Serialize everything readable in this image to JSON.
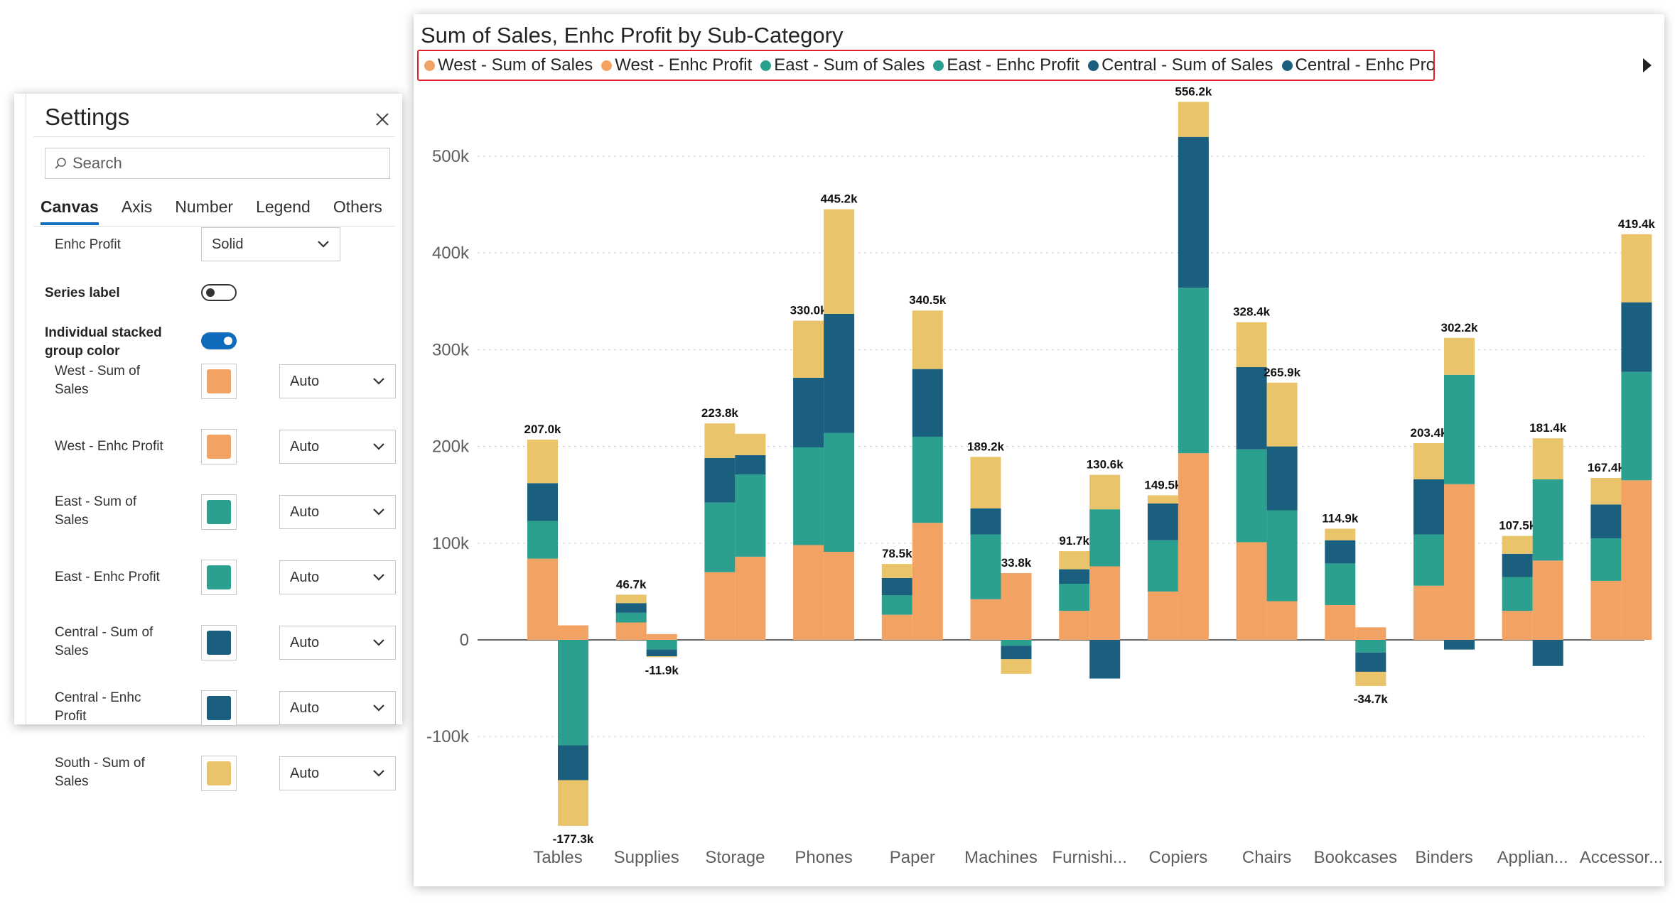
{
  "colors": {
    "west": "#F2A263",
    "east": "#2BA08F",
    "central": "#1A5F7E",
    "south": "#E9C46A",
    "toggle_on": "#0F6CBD"
  },
  "settings": {
    "title": "Settings",
    "search_placeholder": "Search",
    "tabs": [
      "Canvas",
      "Axis",
      "Number",
      "Legend",
      "Others"
    ],
    "enhc_profit_label": "Enhc Profit",
    "enhc_profit_value": "Solid",
    "series_label_label": "Series label",
    "series_label_on": false,
    "individual_color_label_1": "Individual stacked",
    "individual_color_label_2": "group color",
    "individual_color_on": true,
    "series": [
      {
        "label_1": "West - Sum of",
        "label_2": "Sales",
        "color": "#F2A263",
        "mode": "Auto"
      },
      {
        "label_1": "West - Enhc Profit",
        "label_2": "",
        "color": "#F2A263",
        "mode": "Auto"
      },
      {
        "label_1": "East - Sum of",
        "label_2": "Sales",
        "color": "#2BA08F",
        "mode": "Auto"
      },
      {
        "label_1": "East - Enhc Profit",
        "label_2": "",
        "color": "#2BA08F",
        "mode": "Auto"
      },
      {
        "label_1": "Central - Sum of",
        "label_2": "Sales",
        "color": "#1A5F7E",
        "mode": "Auto"
      },
      {
        "label_1": "Central - Enhc",
        "label_2": "Profit",
        "color": "#1A5F7E",
        "mode": "Auto"
      },
      {
        "label_1": "South - Sum of",
        "label_2": "Sales",
        "color": "#E9C46A",
        "mode": "Auto"
      }
    ]
  },
  "chart_data": {
    "type": "bar",
    "title": "Sum of Sales, Enhc Profit by Sub-Category",
    "legend": [
      {
        "name": "West - Sum of Sales",
        "color": "#F2A263"
      },
      {
        "name": "West - Enhc Profit",
        "color": "#F2A263"
      },
      {
        "name": "East - Sum of Sales",
        "color": "#2BA08F"
      },
      {
        "name": "East - Enhc Profit",
        "color": "#2BA08F"
      },
      {
        "name": "Central - Sum of Sales",
        "color": "#1A5F7E"
      },
      {
        "name": "Central - Enhc Profit",
        "color": "#1A5F7E"
      }
    ],
    "legend_position": "top-left",
    "ylim": [
      -150000,
      600000
    ],
    "yticks": [
      -100000,
      0,
      100000,
      200000,
      300000,
      400000,
      500000
    ],
    "ytick_labels": [
      "-100k",
      "0",
      "100k",
      "200k",
      "300k",
      "400k",
      "500k"
    ],
    "grid": true,
    "stack_order": [
      "West",
      "East",
      "Central",
      "South"
    ],
    "categories": [
      "Tables",
      "Supplies",
      "Storage",
      "Phones",
      "Paper",
      "Machines",
      "Furnishi...",
      "Copiers",
      "Chairs",
      "Bookcases",
      "Binders",
      "Applian...",
      "Accessor..."
    ],
    "sales": [
      {
        "West": 84000,
        "East": 39000,
        "Central": 39000,
        "South": 45000,
        "total_label": "207.0k"
      },
      {
        "West": 18000,
        "East": 10000,
        "Central": 10000,
        "South": 8700,
        "total_label": "46.7k"
      },
      {
        "West": 70000,
        "East": 72000,
        "Central": 46000,
        "South": 35800,
        "total_label": "223.8k"
      },
      {
        "West": 98000,
        "East": 101000,
        "Central": 72000,
        "South": 59000,
        "total_label": "330.0k"
      },
      {
        "West": 26000,
        "East": 20000,
        "Central": 18000,
        "South": 14500,
        "total_label": "78.5k"
      },
      {
        "West": 42000,
        "East": 67000,
        "Central": 27000,
        "South": 53200,
        "total_label": "189.2k"
      },
      {
        "West": 30000,
        "East": 28000,
        "Central": 15000,
        "South": 18700,
        "total_label": "91.7k"
      },
      {
        "West": 50000,
        "East": 53000,
        "Central": 38000,
        "South": 8500,
        "total_label": "149.5k"
      },
      {
        "West": 101000,
        "East": 96000,
        "Central": 85000,
        "South": 46400,
        "total_label": "328.4k"
      },
      {
        "West": 36000,
        "East": 43000,
        "Central": 24000,
        "South": 11900,
        "total_label": "114.9k"
      },
      {
        "West": 56000,
        "East": 53000,
        "Central": 57000,
        "South": 37400,
        "total_label": "203.4k"
      },
      {
        "West": 30000,
        "East": 35000,
        "Central": 24000,
        "South": 18500,
        "total_label": "107.5k"
      },
      {
        "West": 61000,
        "East": 44000,
        "Central": 35000,
        "South": 27400,
        "total_label": "167.4k"
      }
    ],
    "profit": [
      {
        "West": 15000,
        "East": -109000,
        "Central": -36000,
        "South": -47300,
        "total_label": "-177.3k"
      },
      {
        "West": 6000,
        "East": -10000,
        "Central": -7000,
        "South": -900,
        "total_label": "-11.9k"
      },
      {
        "West": 86000,
        "East": 85000,
        "Central": 20000,
        "South": 22000,
        "total_label": ""
      },
      {
        "West": 91000,
        "East": 123000,
        "Central": 123000,
        "South": 108200,
        "total_label": "445.2k"
      },
      {
        "West": 121000,
        "East": 89000,
        "Central": 70000,
        "South": 60500,
        "total_label": "340.5k"
      },
      {
        "West": 69000,
        "East": -6000,
        "Central": -14000,
        "South": -15200,
        "total_label": "33.8k"
      },
      {
        "West": 76000,
        "East": 59000,
        "Central": -40000,
        "South": 35600,
        "total_label": "130.6k"
      },
      {
        "West": 193000,
        "East": 171000,
        "Central": 156000,
        "South": 36200,
        "total_label": "556.2k"
      },
      {
        "West": 40000,
        "East": 94000,
        "Central": 66000,
        "South": 65900,
        "total_label": "265.9k"
      },
      {
        "West": 13000,
        "East": -13000,
        "Central": -20000,
        "South": -14700,
        "total_label": "-34.7k"
      },
      {
        "West": 161000,
        "East": 113000,
        "Central": -10000,
        "South": 38200,
        "total_label": "302.2k"
      },
      {
        "West": 82000,
        "East": 84000,
        "Central": -27000,
        "South": 42400,
        "total_label": "181.4k"
      },
      {
        "West": 165000,
        "East": 112000,
        "Central": 72000,
        "South": 70400,
        "total_label": "419.4k"
      }
    ]
  }
}
